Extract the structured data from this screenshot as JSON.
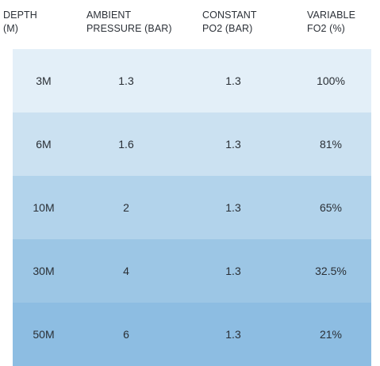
{
  "columns": [
    "DEPTH\n(M)",
    "AMBIENT\nPRESSURE (BAR)",
    "CONSTANT\nPO2 (BAR)",
    "VARIABLE\nFO2 (%)"
  ],
  "rows": [
    [
      "3M",
      "1.3",
      "1.3",
      "100%"
    ],
    [
      "6M",
      "1.6",
      "1.3",
      "81%"
    ],
    [
      "10M",
      "2",
      "1.3",
      "65%"
    ],
    [
      "30M",
      "4",
      "1.3",
      "32.5%"
    ],
    [
      "50M",
      "6",
      "1.3",
      "21%"
    ]
  ],
  "row_colors": [
    "#e3eff8",
    "#cbe1f1",
    "#b2d3eb",
    "#9cc6e5",
    "#8dbde2"
  ]
}
